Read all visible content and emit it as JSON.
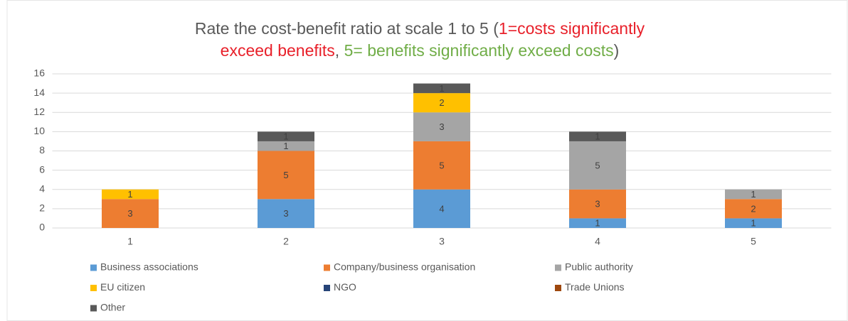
{
  "chart_data": {
    "type": "stacked_bar",
    "title_lines": [
      [
        {
          "text": "Rate the cost-benefit ratio at scale 1 to 5 (",
          "color": "#595959"
        },
        {
          "text": "1=costs significantly",
          "color": "#e8202a"
        }
      ],
      [
        {
          "text": "exceed benefits",
          "color": "#e8202a"
        },
        {
          "text": ", ",
          "color": "#595959"
        },
        {
          "text": "5= benefits significantly exceed costs",
          "color": "#70ad47"
        },
        {
          "text": ")",
          "color": "#595959"
        }
      ]
    ],
    "categories": [
      "1",
      "2",
      "3",
      "4",
      "5"
    ],
    "series": [
      {
        "name": "Business associations",
        "color": "#5b9bd5",
        "values": [
          0,
          3,
          4,
          1,
          1
        ]
      },
      {
        "name": "Company/business organisation",
        "color": "#ed7d31",
        "values": [
          3,
          5,
          5,
          3,
          2
        ]
      },
      {
        "name": "Public authority",
        "color": "#a5a5a5",
        "values": [
          0,
          1,
          3,
          5,
          1
        ]
      },
      {
        "name": "EU citizen",
        "color": "#ffc000",
        "values": [
          1,
          0,
          2,
          0,
          0
        ]
      },
      {
        "name": "NGO",
        "color": "#264478",
        "values": [
          0,
          0,
          0,
          0,
          0
        ]
      },
      {
        "name": "Trade Unions",
        "color": "#9e480e",
        "values": [
          0,
          0,
          0,
          0,
          0
        ]
      },
      {
        "name": "Other",
        "color": "#595959",
        "values": [
          0,
          1,
          1,
          1,
          0
        ]
      }
    ],
    "ylim": [
      0,
      16
    ],
    "yticks": [
      0,
      2,
      4,
      6,
      8,
      10,
      12,
      14,
      16
    ],
    "grid": true
  }
}
